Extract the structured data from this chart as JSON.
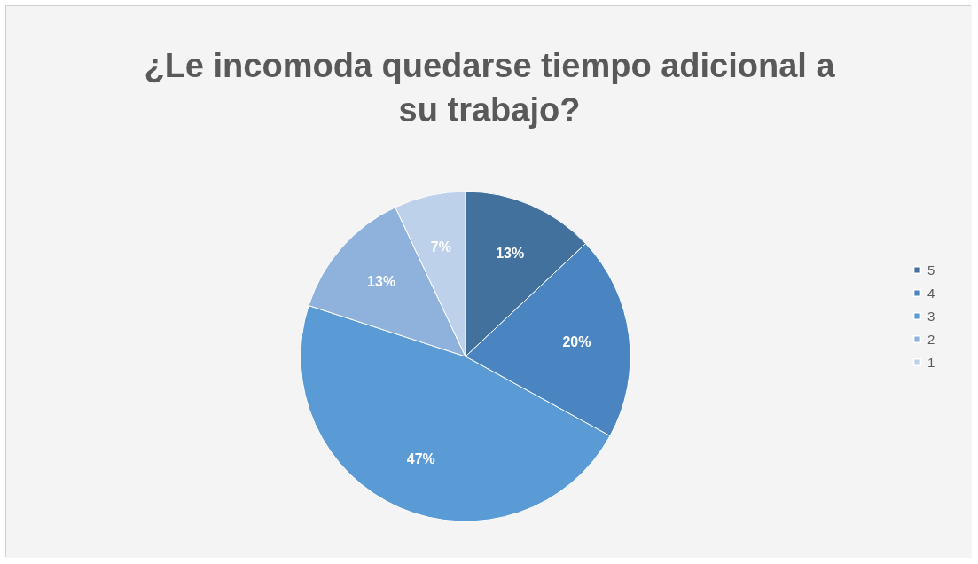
{
  "chart_data": {
    "type": "pie",
    "title": "¿Le incomoda quedarse tiempo adicional a su trabajo?",
    "categories": [
      "5",
      "4",
      "3",
      "2",
      "1"
    ],
    "values": [
      13,
      20,
      47,
      13,
      7
    ],
    "value_labels": [
      "13%",
      "20%",
      "47%",
      "13%",
      "7%"
    ],
    "colors": [
      "#41719c",
      "#4a85c1",
      "#5b9bd5",
      "#8fb2dc",
      "#bdd1ea"
    ],
    "legend": "right"
  }
}
